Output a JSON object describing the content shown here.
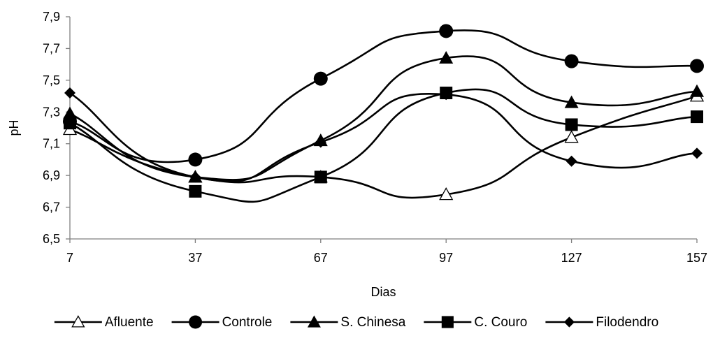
{
  "chart_data": {
    "type": "line",
    "title": "",
    "xlabel": "Dias",
    "ylabel": "pH",
    "x": [
      7,
      37,
      67,
      97,
      127,
      157
    ],
    "ylim": [
      6.5,
      7.9
    ],
    "yticks": [
      "6,5",
      "6,7",
      "6,9",
      "7,1",
      "7,3",
      "7,5",
      "7,7",
      "7,9"
    ],
    "xticks": [
      "7",
      "37",
      "67",
      "97",
      "127",
      "157"
    ],
    "grid": false,
    "legend": "bottom",
    "series": [
      {
        "name": "Afluente",
        "marker": "triangle-open",
        "values": [
          7.19,
          6.89,
          6.89,
          6.78,
          7.14,
          7.4
        ]
      },
      {
        "name": "Controle",
        "marker": "circle",
        "values": [
          7.24,
          7.0,
          7.51,
          7.81,
          7.62,
          7.59
        ]
      },
      {
        "name": "S. Chinesa",
        "marker": "triangle",
        "values": [
          7.29,
          6.89,
          7.12,
          7.64,
          7.36,
          7.43
        ]
      },
      {
        "name": "C. Couro",
        "marker": "square",
        "values": [
          7.23,
          6.8,
          6.89,
          7.42,
          7.22,
          7.27
        ]
      },
      {
        "name": "Filodendro",
        "marker": "diamond",
        "values": [
          7.42,
          6.89,
          7.11,
          7.41,
          6.99,
          7.04
        ]
      }
    ]
  }
}
